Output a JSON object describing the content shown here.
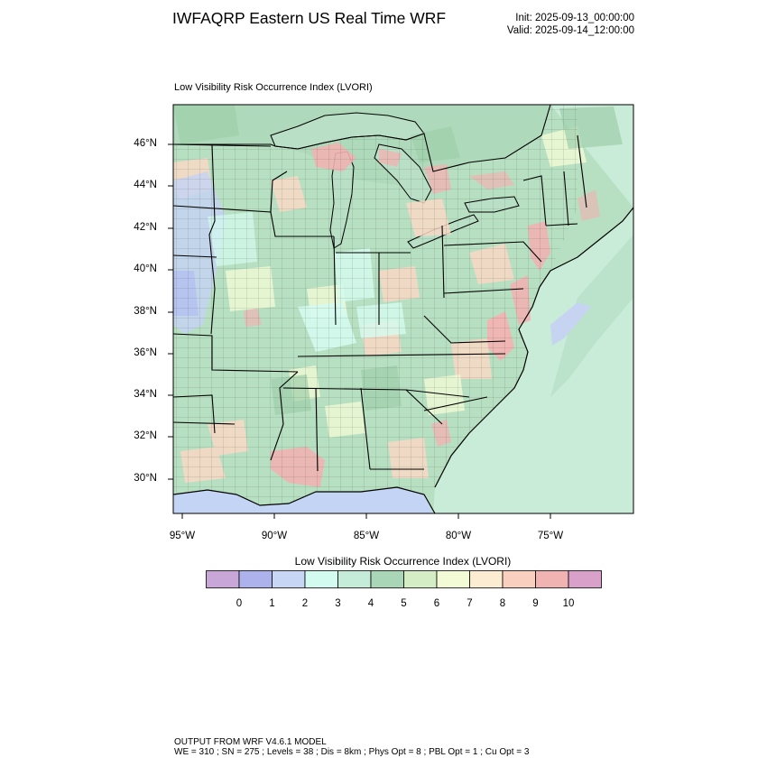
{
  "header": {
    "title": "IWFAQRP Eastern US Real Time WRF",
    "init": "Init: 2025-09-13_00:00:00",
    "valid": "Valid: 2025-09-14_12:00:00"
  },
  "plot": {
    "subtitle": "Low Visibility Risk Occurrence Index   (LVORI)",
    "latitude_labels": [
      "46°N",
      "44°N",
      "42°N",
      "40°N",
      "38°N",
      "36°N",
      "34°N",
      "32°N",
      "30°N"
    ],
    "longitude_labels": [
      "95°W",
      "90°W",
      "85°W",
      "80°W",
      "75°W"
    ]
  },
  "colorbar": {
    "title": "Low Visibility Risk Occurrence Index  (LVORI)",
    "labels": [
      "0",
      "1",
      "2",
      "3",
      "4",
      "5",
      "6",
      "7",
      "8",
      "9",
      "10"
    ],
    "colors": [
      "#c9a6d8",
      "#adb2ec",
      "#c6d6f4",
      "#d4fbef",
      "#c5ecd8",
      "#a9d6b6",
      "#d5edc4",
      "#f2fbd6",
      "#fcecd2",
      "#f9d0c0",
      "#f0b3b2",
      "#d9a1c9"
    ]
  },
  "map_colors": {
    "land_base": "#b7dfc1",
    "ocean": "#c9ecd8",
    "great_lakes": "#b9dfc6",
    "gulf_water": "#c4d4f4",
    "high_risk": "#f1b3b3",
    "moderate_risk": "#f9d9c6",
    "low_risk_blue": "#c6d4f2",
    "borders": "#000000"
  },
  "footer": {
    "line1": "OUTPUT FROM WRF V4.6.1 MODEL",
    "line2": "WE = 310 ; SN = 275 ; Levels = 38 ; Dis = 8km ; Phys Opt = 8 ; PBL Opt = 1 ; Cu Opt = 3"
  }
}
